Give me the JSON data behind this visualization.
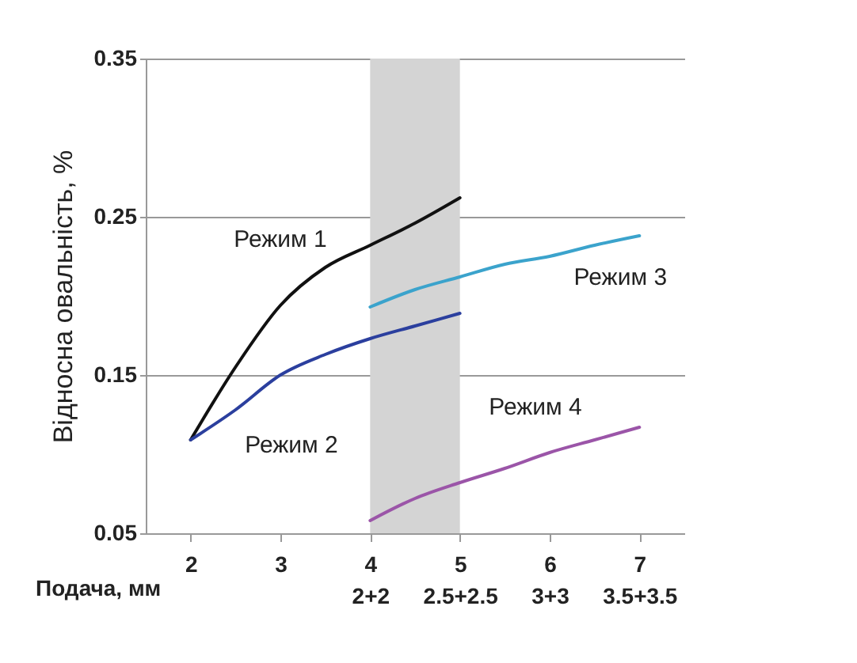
{
  "chart_data": {
    "type": "line",
    "xlabel": "Подача, мм",
    "ylabel": "Відносна овальність, %",
    "x": [
      2,
      2.5,
      3,
      3.5,
      4,
      4.5,
      5,
      5.5,
      6,
      6.5,
      7
    ],
    "series": [
      {
        "name": "Режим 1",
        "color": "#111111",
        "values": [
          0.109,
          0.155,
          0.194,
          0.218,
          0.232,
          0.246,
          0.262,
          null,
          null,
          null,
          null
        ]
      },
      {
        "name": "Режим 2",
        "color": "#2b3f9e",
        "values": [
          0.109,
          0.128,
          0.15,
          0.163,
          0.173,
          0.181,
          0.189,
          null,
          null,
          null,
          null
        ]
      },
      {
        "name": "Режим 3",
        "color": "#3ba3cc",
        "values": [
          null,
          null,
          null,
          null,
          0.193,
          0.204,
          0.212,
          0.22,
          0.225,
          0.232,
          0.238
        ]
      },
      {
        "name": "Режим 4",
        "color": "#9b55a8",
        "values": [
          null,
          null,
          null,
          null,
          0.058,
          0.072,
          0.082,
          0.091,
          0.101,
          0.109,
          0.117
        ]
      }
    ],
    "xlim": [
      1.5,
      7.5
    ],
    "xticks": [
      2,
      3,
      {
        "value": 4,
        "label": "4\n2+2"
      },
      {
        "value": 5,
        "label": "5\n2.5+2.5"
      },
      {
        "value": 6,
        "label": "6\n3+3"
      },
      {
        "value": 7,
        "label": "7\n3.5+3.5"
      }
    ],
    "ylim": [
      0.05,
      0.35
    ],
    "yticks": [
      {
        "value": 0.05,
        "label": "0.05"
      },
      {
        "value": 0.15,
        "label": "0.15"
      },
      {
        "value": 0.25,
        "label": "0.25"
      },
      {
        "value": 0.35,
        "label": "0.35"
      }
    ],
    "bands": [
      {
        "axis": "x",
        "from": 4,
        "to": 5,
        "color": "#d4d4d4"
      }
    ],
    "grid": "y",
    "legend": false,
    "marker": "none",
    "line_style": "solid"
  }
}
